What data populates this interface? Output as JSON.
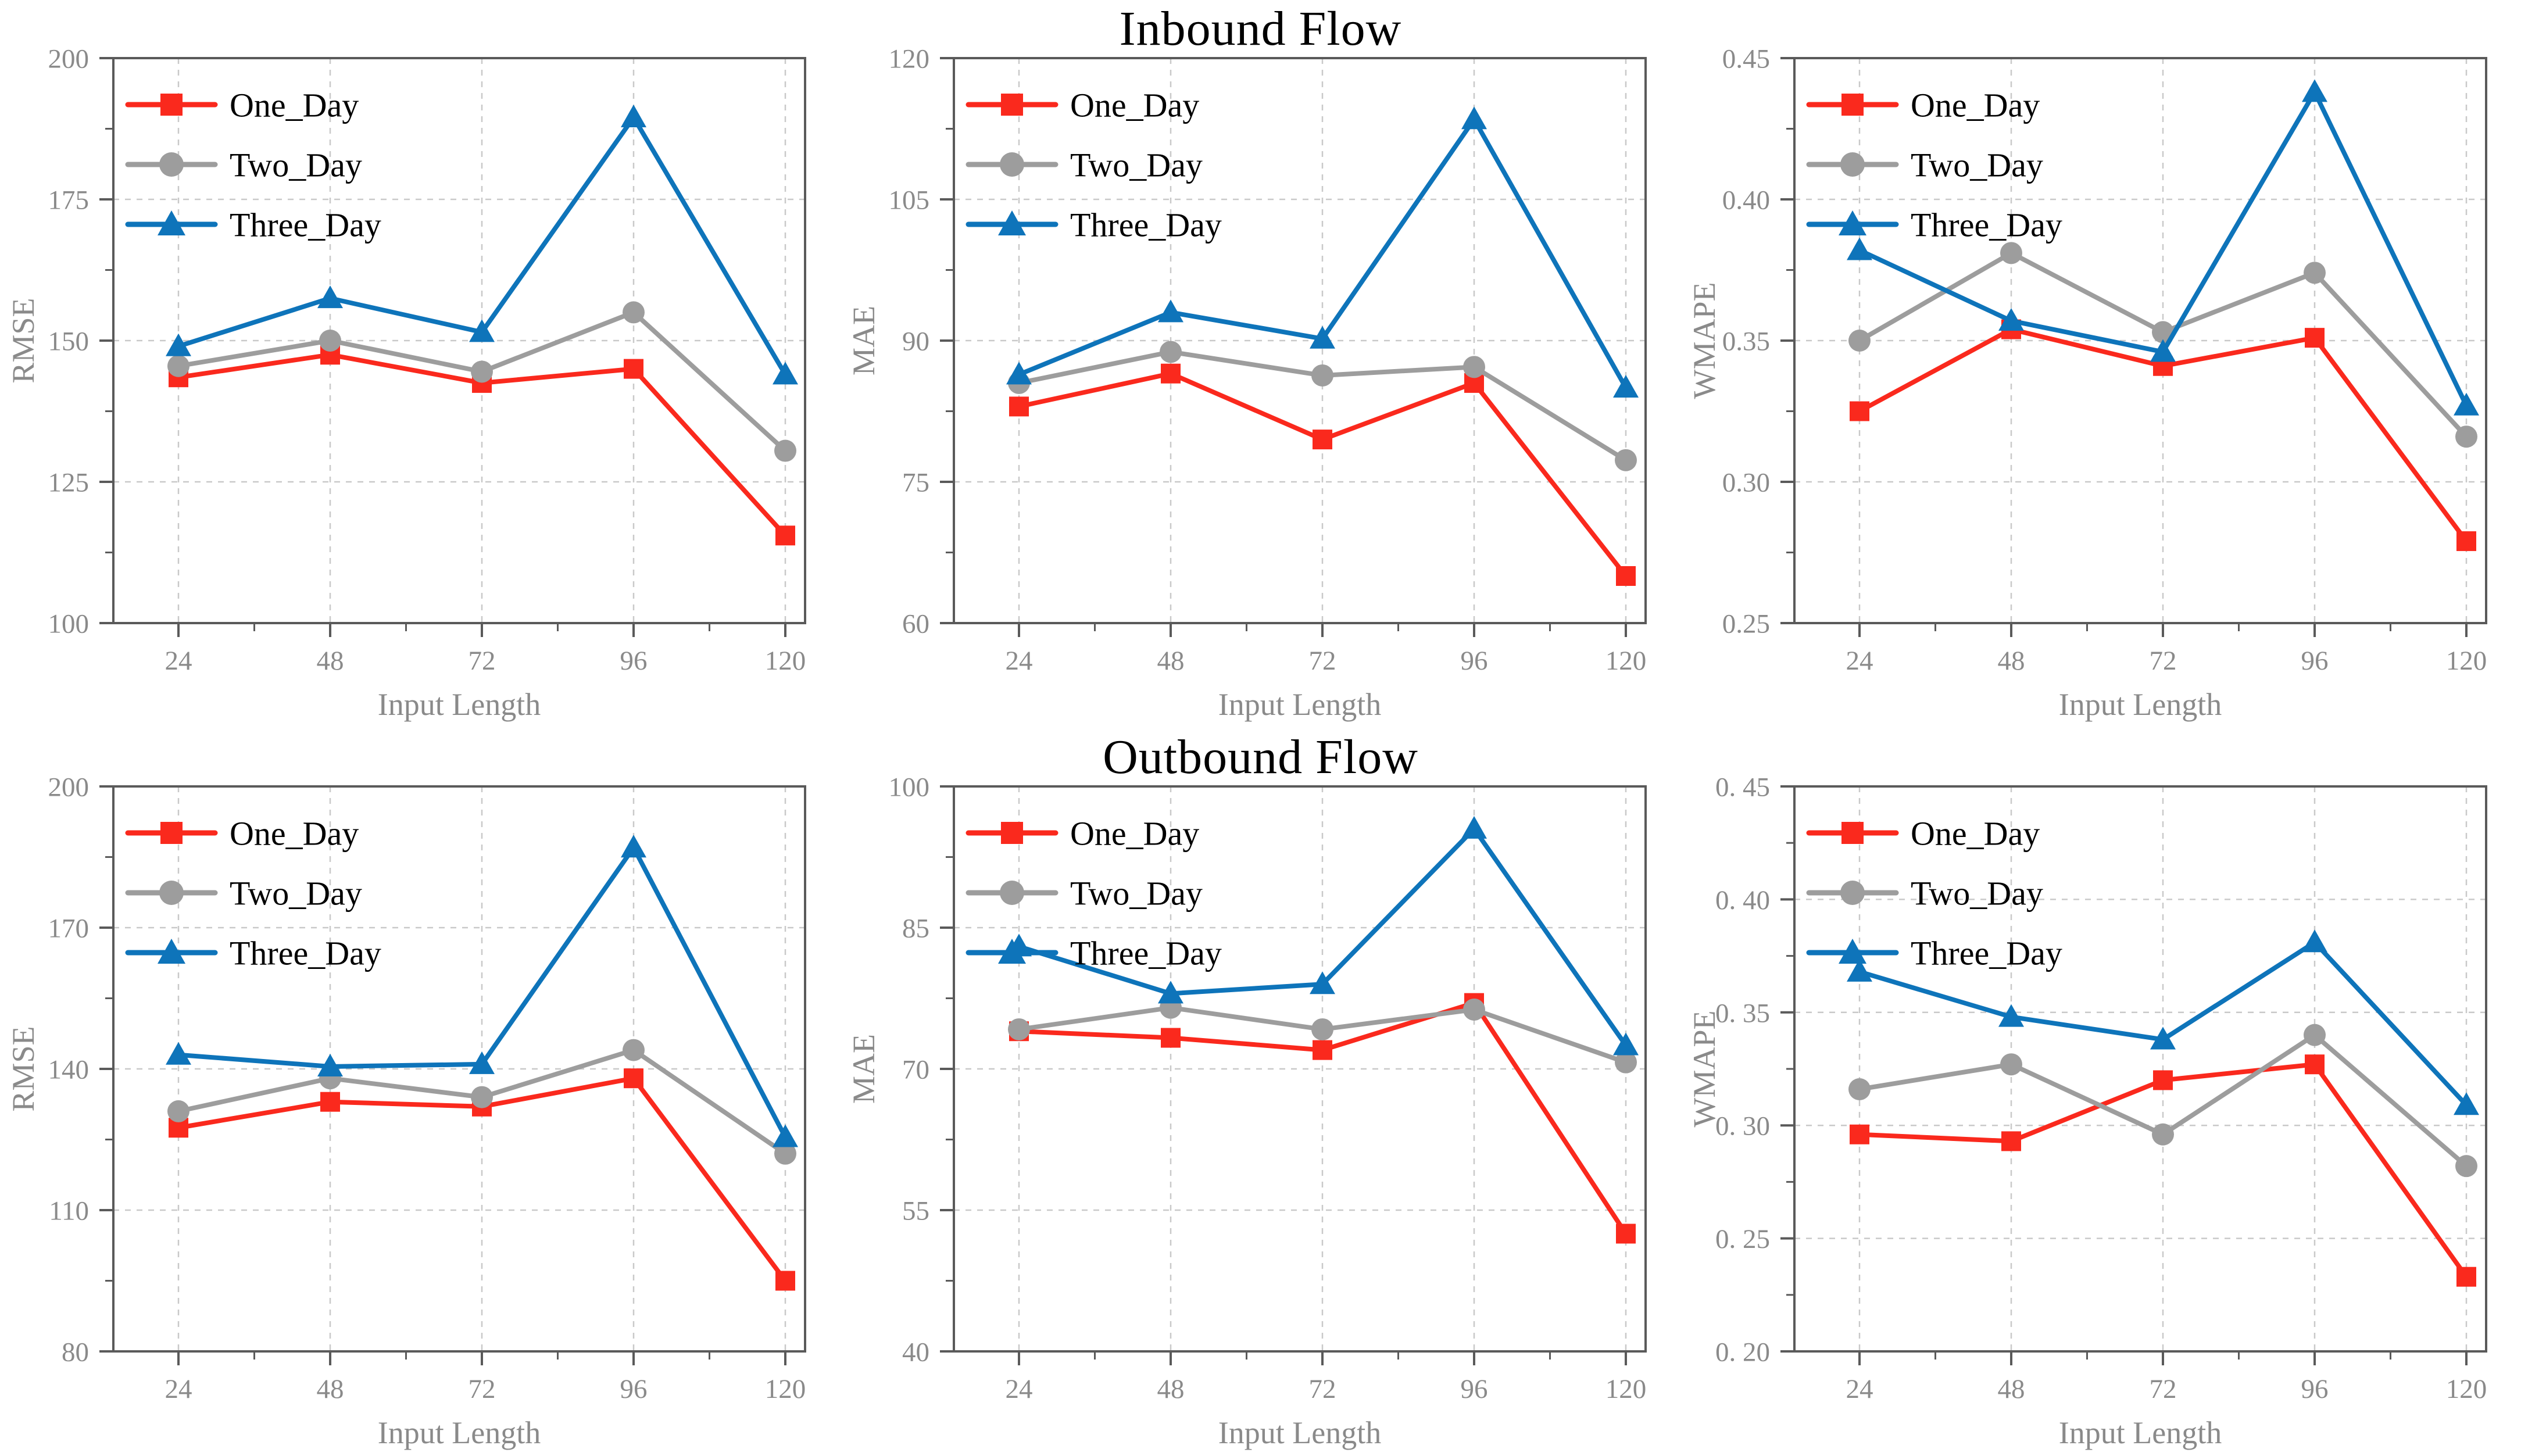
{
  "series_colors": {
    "One_Day": "#fa291d",
    "Two_Day": "#9d9d9d",
    "Three_Day": "#0e74ba"
  },
  "series_markers": {
    "One_Day": "square",
    "Two_Day": "circle",
    "Three_Day": "triangle"
  },
  "style_colors": {
    "grid": "#c9c9c9",
    "spine": "#5a5a5a",
    "tick_label": "#8a8a8a",
    "axis_label": "#8a8a8a",
    "legend_text": "#000000",
    "title_text": "#000000"
  },
  "chart_data": [
    {
      "type": "line",
      "ylabel": "RMSE",
      "xlabel": "Input Length",
      "x": [
        24,
        48,
        72,
        96,
        120
      ],
      "xtick_labels": [
        "24",
        "48",
        "72",
        "96",
        "120"
      ],
      "ylim": [
        100,
        200
      ],
      "yticks": [
        100,
        125,
        150,
        175,
        200
      ],
      "ytick_labels": [
        "100",
        "125",
        "150",
        "175",
        "200"
      ],
      "grid": true,
      "legend_position": "top-left",
      "series": [
        {
          "name": "One_Day",
          "values": [
            143.5,
            147.5,
            142.5,
            145.0,
            115.5
          ]
        },
        {
          "name": "Two_Day",
          "values": [
            145.5,
            150.0,
            144.5,
            155.0,
            130.5
          ]
        },
        {
          "name": "Three_Day",
          "values": [
            149.0,
            157.5,
            151.5,
            189.5,
            144.0
          ]
        }
      ]
    },
    {
      "type": "line",
      "title": "Inbound Flow",
      "ylabel": "MAE",
      "xlabel": "Input Length",
      "x": [
        24,
        48,
        72,
        96,
        120
      ],
      "xtick_labels": [
        "24",
        "48",
        "72",
        "96",
        "120"
      ],
      "ylim": [
        60,
        120
      ],
      "yticks": [
        60,
        75,
        90,
        105,
        120
      ],
      "ytick_labels": [
        "60",
        "75",
        "90",
        "105",
        "120"
      ],
      "grid": true,
      "legend_position": "top-left",
      "series": [
        {
          "name": "One_Day",
          "values": [
            83.0,
            86.5,
            79.5,
            85.5,
            65.0
          ]
        },
        {
          "name": "Two_Day",
          "values": [
            85.5,
            88.8,
            86.3,
            87.2,
            77.3
          ]
        },
        {
          "name": "Three_Day",
          "values": [
            86.4,
            93.0,
            90.2,
            113.5,
            85.0
          ]
        }
      ]
    },
    {
      "type": "line",
      "ylabel": "WMAPE",
      "xlabel": "Input Length",
      "x": [
        24,
        48,
        72,
        96,
        120
      ],
      "xtick_labels": [
        "24",
        "48",
        "72",
        "96",
        "120"
      ],
      "ylim": [
        0.25,
        0.45
      ],
      "yticks": [
        0.25,
        0.3,
        0.35,
        0.4,
        0.45
      ],
      "ytick_labels": [
        "0.25",
        "0.30",
        "0.35",
        "0.40",
        "0.45"
      ],
      "grid": true,
      "legend_position": "top-left",
      "series": [
        {
          "name": "One_Day",
          "values": [
            0.325,
            0.354,
            0.341,
            0.351,
            0.279
          ]
        },
        {
          "name": "Two_Day",
          "values": [
            0.35,
            0.381,
            0.353,
            0.374,
            0.316
          ]
        },
        {
          "name": "Three_Day",
          "values": [
            0.382,
            0.357,
            0.346,
            0.438,
            0.327
          ]
        }
      ]
    },
    {
      "type": "line",
      "ylabel": "RMSE",
      "xlabel": "Input Length",
      "x": [
        24,
        48,
        72,
        96,
        120
      ],
      "xtick_labels": [
        "24",
        "48",
        "72",
        "96",
        "120"
      ],
      "ylim": [
        80,
        200
      ],
      "yticks": [
        80,
        110,
        140,
        170,
        200
      ],
      "ytick_labels": [
        "80",
        "110",
        "140",
        "170",
        "200"
      ],
      "grid": true,
      "legend_position": "top-left",
      "series": [
        {
          "name": "One_Day",
          "values": [
            127.5,
            133.0,
            132.0,
            138.0,
            95.0
          ]
        },
        {
          "name": "Two_Day",
          "values": [
            131.0,
            138.0,
            134.0,
            144.0,
            122.0
          ]
        },
        {
          "name": "Three_Day",
          "values": [
            143.0,
            140.5,
            141.0,
            187.0,
            125.5
          ]
        }
      ]
    },
    {
      "type": "line",
      "title": "Outbound Flow",
      "ylabel": "MAE",
      "xlabel": "Input Length",
      "x": [
        24,
        48,
        72,
        96,
        120
      ],
      "xtick_labels": [
        "24",
        "48",
        "72",
        "96",
        "120"
      ],
      "ylim": [
        40,
        100
      ],
      "yticks": [
        40,
        55,
        70,
        85,
        100
      ],
      "ytick_labels": [
        "40",
        "55",
        "70",
        "85",
        "100"
      ],
      "grid": true,
      "legend_position": "top-left",
      "series": [
        {
          "name": "One_Day",
          "values": [
            74.0,
            73.3,
            72.0,
            77.0,
            52.5
          ]
        },
        {
          "name": "Two_Day",
          "values": [
            74.2,
            76.5,
            74.2,
            76.3,
            70.7
          ]
        },
        {
          "name": "Three_Day",
          "values": [
            83.0,
            78.0,
            79.0,
            95.5,
            72.5
          ]
        }
      ]
    },
    {
      "type": "line",
      "ylabel": "WMAPE",
      "xlabel": "Input Length",
      "x": [
        24,
        48,
        72,
        96,
        120
      ],
      "xtick_labels": [
        "24",
        "48",
        "72",
        "96",
        "120"
      ],
      "ylim": [
        0.2,
        0.45
      ],
      "yticks": [
        0.2,
        0.25,
        0.3,
        0.35,
        0.4,
        0.45
      ],
      "ytick_labels": [
        "0. 20",
        "0. 25",
        "0. 30",
        "0. 35",
        "0. 40",
        "0. 45"
      ],
      "grid": true,
      "legend_position": "top-left",
      "series": [
        {
          "name": "One_Day",
          "values": [
            0.296,
            0.293,
            0.32,
            0.327,
            0.233
          ]
        },
        {
          "name": "Two_Day",
          "values": [
            0.316,
            0.327,
            0.296,
            0.34,
            0.282
          ]
        },
        {
          "name": "Three_Day",
          "values": [
            0.368,
            0.348,
            0.338,
            0.381,
            0.309
          ]
        }
      ]
    }
  ]
}
